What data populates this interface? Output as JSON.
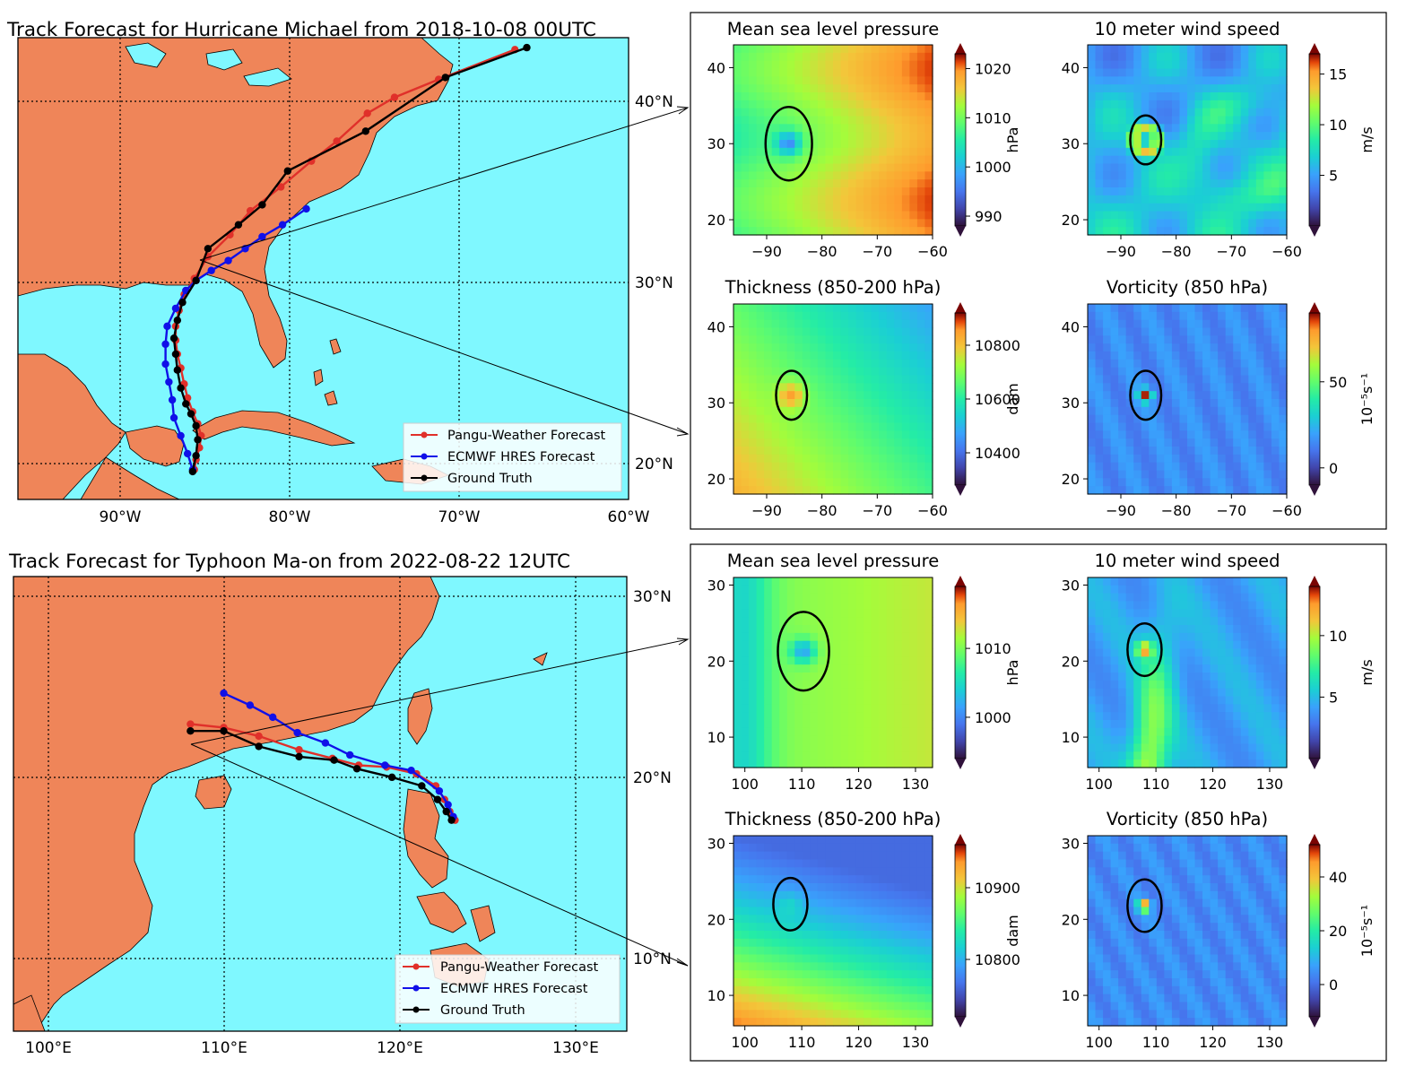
{
  "colors": {
    "ocean": "#7ff8ff",
    "land": "#ef8559",
    "pangu": "#e0302a",
    "hres": "#1010e8",
    "truth": "#000000"
  },
  "chart_data": [
    {
      "type": "line",
      "title": "Track Forecast for Hurricane Michael from 2018-10-08 00UTC",
      "xlim": [
        -96,
        -60
      ],
      "ylim": [
        18.3,
        41.5
      ],
      "x_ticks": [
        "90°W",
        "80°W",
        "70°W",
        "60°W"
      ],
      "y_ticks": [
        "40°N",
        "30°N",
        "20°N"
      ],
      "legend": {
        "placement": "lower-right",
        "entries": [
          "Pangu-Weather Forecast",
          "ECMWF HRES Forecast",
          "Ground Truth"
        ]
      },
      "series": [
        {
          "name": "Pangu-Weather Forecast",
          "points": [
            [
              -85.6,
              19.8
            ],
            [
              -85.5,
              20.3
            ],
            [
              -85.3,
              20.9
            ],
            [
              -85.2,
              21.5
            ],
            [
              -85.4,
              22.1
            ],
            [
              -85.7,
              22.7
            ],
            [
              -86.0,
              23.4
            ],
            [
              -86.2,
              24.1
            ],
            [
              -86.4,
              24.9
            ],
            [
              -86.6,
              25.6
            ],
            [
              -86.7,
              26.3
            ],
            [
              -86.7,
              27.0
            ],
            [
              -86.5,
              27.8
            ],
            [
              -86.2,
              28.6
            ],
            [
              -85.6,
              29.4
            ],
            [
              -84.8,
              30.5
            ],
            [
              -83.5,
              31.6
            ],
            [
              -82.3,
              32.8
            ],
            [
              -80.5,
              34.0
            ],
            [
              -78.7,
              35.3
            ],
            [
              -77.2,
              36.3
            ],
            [
              -75.4,
              37.7
            ],
            [
              -73.8,
              38.5
            ],
            [
              -71.2,
              39.4
            ],
            [
              -66.7,
              40.9
            ]
          ]
        },
        {
          "name": "ECMWF HRES Forecast",
          "points": [
            [
              -85.7,
              19.8
            ],
            [
              -86.0,
              20.6
            ],
            [
              -86.4,
              21.5
            ],
            [
              -86.8,
              22.4
            ],
            [
              -86.9,
              23.3
            ],
            [
              -87.1,
              24.2
            ],
            [
              -87.3,
              25.1
            ],
            [
              -87.3,
              26.1
            ],
            [
              -87.2,
              27.0
            ],
            [
              -86.7,
              27.9
            ],
            [
              -86.1,
              28.8
            ],
            [
              -85.5,
              29.3
            ],
            [
              -84.6,
              29.8
            ],
            [
              -83.6,
              30.3
            ],
            [
              -82.6,
              30.9
            ],
            [
              -81.6,
              31.5
            ],
            [
              -80.4,
              32.1
            ],
            [
              -79.0,
              32.9
            ]
          ]
        },
        {
          "name": "Ground Truth",
          "points": [
            [
              -85.7,
              19.7
            ],
            [
              -85.5,
              20.5
            ],
            [
              -85.4,
              21.3
            ],
            [
              -85.5,
              22.0
            ],
            [
              -85.8,
              22.6
            ],
            [
              -86.1,
              23.1
            ],
            [
              -86.4,
              23.9
            ],
            [
              -86.6,
              24.8
            ],
            [
              -86.7,
              25.6
            ],
            [
              -86.8,
              26.4
            ],
            [
              -86.6,
              27.3
            ],
            [
              -86.3,
              28.2
            ],
            [
              -85.5,
              29.3
            ],
            [
              -84.8,
              30.9
            ],
            [
              -83.0,
              32.1
            ],
            [
              -81.6,
              33.1
            ],
            [
              -80.1,
              34.8
            ],
            [
              -75.5,
              36.8
            ],
            [
              -70.8,
              39.5
            ],
            [
              -66.0,
              41.0
            ]
          ]
        }
      ]
    },
    {
      "type": "line",
      "title": "Track Forecast for Typhoon Ma-on from 2022-08-22 12UTC",
      "xlim": [
        98,
        133
      ],
      "ylim": [
        4,
        30.5
      ],
      "x_ticks": [
        "100°E",
        "110°E",
        "120°E",
        "130°E"
      ],
      "y_ticks": [
        "30°N",
        "20°N",
        "10°N"
      ],
      "legend": {
        "placement": "lower-right",
        "entries": [
          "Pangu-Weather Forecast",
          "ECMWF HRES Forecast",
          "Ground Truth"
        ]
      },
      "series": [
        {
          "name": "Pangu-Weather Forecast",
          "points": [
            [
              123.2,
              16.3
            ],
            [
              122.9,
              16.8
            ],
            [
              122.6,
              17.5
            ],
            [
              122.1,
              18.3
            ],
            [
              121.0,
              19.0
            ],
            [
              119.3,
              19.4
            ],
            [
              117.7,
              19.5
            ],
            [
              116.2,
              19.9
            ],
            [
              114.3,
              20.4
            ],
            [
              112.0,
              21.2
            ],
            [
              110.0,
              21.7
            ],
            [
              108.1,
              21.9
            ]
          ]
        },
        {
          "name": "ECMWF HRES Forecast",
          "points": [
            [
              123.1,
              16.5
            ],
            [
              122.8,
              17.2
            ],
            [
              122.3,
              18.0
            ],
            [
              120.7,
              19.2
            ],
            [
              119.2,
              19.5
            ],
            [
              117.2,
              20.1
            ],
            [
              115.8,
              20.8
            ],
            [
              114.2,
              21.4
            ],
            [
              112.8,
              22.3
            ],
            [
              111.5,
              23.0
            ],
            [
              110.0,
              23.7
            ]
          ]
        },
        {
          "name": "Ground Truth",
          "points": [
            [
              123.0,
              16.3
            ],
            [
              122.7,
              16.8
            ],
            [
              122.2,
              17.5
            ],
            [
              121.3,
              18.3
            ],
            [
              119.6,
              18.8
            ],
            [
              117.6,
              19.3
            ],
            [
              116.3,
              19.8
            ],
            [
              114.3,
              20.0
            ],
            [
              112.0,
              20.6
            ],
            [
              110.0,
              21.5
            ],
            [
              108.1,
              21.5
            ]
          ]
        }
      ]
    },
    {
      "type": "heatmap",
      "title": "Mean sea level pressure",
      "xlim": [
        -96,
        -60
      ],
      "ylim": [
        18,
        43
      ],
      "x_ticks": [
        "−90",
        "−80",
        "−70",
        "−60"
      ],
      "y_ticks": [
        "40",
        "30",
        "20"
      ],
      "colorbar": {
        "label": "hPa",
        "ticks": [
          "1020",
          "1010",
          "1000",
          "990"
        ],
        "range": [
          988,
          1023
        ]
      },
      "circle": {
        "x": -86,
        "y": 30,
        "r": 4.2
      }
    },
    {
      "type": "heatmap",
      "title": "10 meter wind speed",
      "xlim": [
        -96,
        -60
      ],
      "ylim": [
        18,
        43
      ],
      "x_ticks": [
        "−90",
        "−80",
        "−70",
        "−60"
      ],
      "y_ticks": [
        "40",
        "30",
        "20"
      ],
      "colorbar": {
        "label": "m/s",
        "ticks": [
          "15",
          "10",
          "5"
        ],
        "range": [
          0,
          17
        ]
      },
      "circle": {
        "x": -85.5,
        "y": 30.5,
        "r": 2.8
      }
    },
    {
      "type": "heatmap",
      "title": "Thickness (850-200 hPa)",
      "xlim": [
        -96,
        -60
      ],
      "ylim": [
        18,
        43
      ],
      "x_ticks": [
        "−90",
        "−80",
        "−70",
        "−60"
      ],
      "y_ticks": [
        "40",
        "30",
        "20"
      ],
      "colorbar": {
        "label": "dam",
        "ticks": [
          "10800",
          "10600",
          "10400"
        ],
        "range": [
          10280,
          10920
        ]
      },
      "circle": {
        "x": -85.5,
        "y": 31,
        "r": 2.8
      }
    },
    {
      "type": "heatmap",
      "title": "Vorticity (850 hPa)",
      "xlim": [
        -96,
        -60
      ],
      "ylim": [
        18,
        43
      ],
      "x_ticks": [
        "−90",
        "−80",
        "−70",
        "−60"
      ],
      "y_ticks": [
        "40",
        "30",
        "20"
      ],
      "colorbar": {
        "label": "10⁻⁵s⁻¹",
        "ticks": [
          "50",
          "0"
        ],
        "range": [
          -10,
          90
        ]
      },
      "circle": {
        "x": -85.5,
        "y": 31,
        "r": 2.8
      }
    },
    {
      "type": "heatmap",
      "title": "Mean sea level pressure",
      "xlim": [
        98,
        133
      ],
      "ylim": [
        6,
        31
      ],
      "x_ticks": [
        "100",
        "110",
        "120",
        "130"
      ],
      "y_ticks": [
        "30",
        "20",
        "10"
      ],
      "colorbar": {
        "label": "hPa",
        "ticks": [
          "1010",
          "1000"
        ],
        "range": [
          994,
          1019
        ]
      },
      "circle": {
        "x": 110.3,
        "y": 21.3,
        "r": 4.5
      }
    },
    {
      "type": "heatmap",
      "title": "10 meter wind speed",
      "xlim": [
        98,
        133
      ],
      "ylim": [
        6,
        31
      ],
      "x_ticks": [
        "100",
        "110",
        "120",
        "130"
      ],
      "y_ticks": [
        "30",
        "20",
        "10"
      ],
      "colorbar": {
        "label": "m/s",
        "ticks": [
          "10",
          "5"
        ],
        "range": [
          0,
          14
        ]
      },
      "circle": {
        "x": 108,
        "y": 21.5,
        "r": 3
      }
    },
    {
      "type": "heatmap",
      "title": "Thickness (850-200 hPa)",
      "xlim": [
        98,
        133
      ],
      "ylim": [
        6,
        31
      ],
      "x_ticks": [
        "100",
        "110",
        "120",
        "130"
      ],
      "y_ticks": [
        "30",
        "20",
        "10"
      ],
      "colorbar": {
        "label": "dam",
        "ticks": [
          "10900",
          "10800"
        ],
        "range": [
          10720,
          10960
        ]
      },
      "circle": {
        "x": 108,
        "y": 22,
        "r": 3
      }
    },
    {
      "type": "heatmap",
      "title": "Vorticity (850 hPa)",
      "xlim": [
        98,
        133
      ],
      "ylim": [
        6,
        31
      ],
      "x_ticks": [
        "100",
        "110",
        "120",
        "130"
      ],
      "y_ticks": [
        "30",
        "20",
        "10"
      ],
      "colorbar": {
        "label": "10⁻⁵s⁻¹",
        "ticks": [
          "40",
          "20",
          "0"
        ],
        "range": [
          -12,
          52
        ]
      },
      "circle": {
        "x": 108,
        "y": 21.8,
        "r": 3
      }
    }
  ]
}
